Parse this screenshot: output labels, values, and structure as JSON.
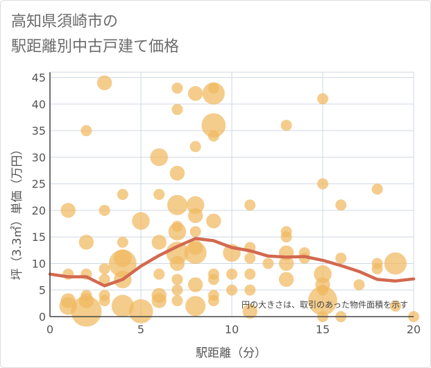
{
  "chart_data": {
    "type": "scatter",
    "title_lines": [
      "高知県須崎市の",
      "駅距離別中古戸建て価格"
    ],
    "xlabel": "駅距離（分）",
    "ylabel": "坪（3.3㎡）単価（万円）",
    "note": "円の大きさは、取引のあった物件面積を示す",
    "xlim": [
      0,
      20
    ],
    "ylim": [
      0,
      46
    ],
    "xticks": [
      0,
      5,
      10,
      15,
      20
    ],
    "yticks": [
      0,
      5,
      10,
      15,
      20,
      25,
      30,
      35,
      40,
      45
    ],
    "grid": true,
    "colors": {
      "bubble": "#f0b860",
      "line": "#d2694f"
    },
    "series": [
      {
        "type": "bubble",
        "points": [
          {
            "x": 1,
            "y": 20,
            "size": 2
          },
          {
            "x": 1,
            "y": 8,
            "size": 1
          },
          {
            "x": 1,
            "y": 3,
            "size": 2
          },
          {
            "x": 1,
            "y": 2,
            "size": 3
          },
          {
            "x": 2,
            "y": 35,
            "size": 1
          },
          {
            "x": 2,
            "y": 14,
            "size": 2
          },
          {
            "x": 2,
            "y": 8,
            "size": 1
          },
          {
            "x": 2,
            "y": 4,
            "size": 1
          },
          {
            "x": 2,
            "y": 3,
            "size": 2
          },
          {
            "x": 2,
            "y": 1,
            "size": 10
          },
          {
            "x": 3,
            "y": 44,
            "size": 2
          },
          {
            "x": 3,
            "y": 20,
            "size": 1
          },
          {
            "x": 3,
            "y": 9,
            "size": 1
          },
          {
            "x": 3,
            "y": 7,
            "size": 1
          },
          {
            "x": 3,
            "y": 4,
            "size": 1
          },
          {
            "x": 3,
            "y": 3,
            "size": 1
          },
          {
            "x": 4,
            "y": 23,
            "size": 1
          },
          {
            "x": 4,
            "y": 14,
            "size": 1
          },
          {
            "x": 4,
            "y": 11,
            "size": 3
          },
          {
            "x": 4,
            "y": 10,
            "size": 8
          },
          {
            "x": 4,
            "y": 7,
            "size": 3
          },
          {
            "x": 4,
            "y": 2,
            "size": 5
          },
          {
            "x": 5,
            "y": 18,
            "size": 3
          },
          {
            "x": 5,
            "y": 1,
            "size": 6
          },
          {
            "x": 6,
            "y": 30,
            "size": 3
          },
          {
            "x": 6,
            "y": 23,
            "size": 1
          },
          {
            "x": 6,
            "y": 14,
            "size": 2
          },
          {
            "x": 6,
            "y": 8,
            "size": 1
          },
          {
            "x": 6,
            "y": 4,
            "size": 2
          },
          {
            "x": 6,
            "y": 3,
            "size": 2
          },
          {
            "x": 7,
            "y": 43,
            "size": 1
          },
          {
            "x": 7,
            "y": 39,
            "size": 1
          },
          {
            "x": 7,
            "y": 27,
            "size": 2
          },
          {
            "x": 7,
            "y": 21,
            "size": 4
          },
          {
            "x": 7,
            "y": 17,
            "size": 1
          },
          {
            "x": 7,
            "y": 16,
            "size": 3
          },
          {
            "x": 7,
            "y": 12,
            "size": 5
          },
          {
            "x": 7,
            "y": 10,
            "size": 2
          },
          {
            "x": 7,
            "y": 7,
            "size": 1
          },
          {
            "x": 7,
            "y": 5,
            "size": 1
          },
          {
            "x": 7,
            "y": 3,
            "size": 1
          },
          {
            "x": 8,
            "y": 42,
            "size": 2
          },
          {
            "x": 8,
            "y": 32,
            "size": 1
          },
          {
            "x": 8,
            "y": 21,
            "size": 3
          },
          {
            "x": 8,
            "y": 19,
            "size": 2
          },
          {
            "x": 8,
            "y": 16,
            "size": 1
          },
          {
            "x": 8,
            "y": 13,
            "size": 2
          },
          {
            "x": 8,
            "y": 12,
            "size": 5
          },
          {
            "x": 8,
            "y": 6,
            "size": 2
          },
          {
            "x": 8,
            "y": 2,
            "size": 4
          },
          {
            "x": 9,
            "y": 43,
            "size": 1
          },
          {
            "x": 9,
            "y": 42,
            "size": 5
          },
          {
            "x": 9,
            "y": 36,
            "size": 6
          },
          {
            "x": 9,
            "y": 34,
            "size": 1
          },
          {
            "x": 9,
            "y": 18,
            "size": 2
          },
          {
            "x": 9,
            "y": 8,
            "size": 1
          },
          {
            "x": 9,
            "y": 7,
            "size": 1
          },
          {
            "x": 9,
            "y": 4,
            "size": 1
          },
          {
            "x": 9,
            "y": 3,
            "size": 1
          },
          {
            "x": 10,
            "y": 12,
            "size": 3
          },
          {
            "x": 10,
            "y": 8,
            "size": 1
          },
          {
            "x": 10,
            "y": 5,
            "size": 1
          },
          {
            "x": 11,
            "y": 21,
            "size": 1
          },
          {
            "x": 11,
            "y": 13,
            "size": 1
          },
          {
            "x": 11,
            "y": 11,
            "size": 1
          },
          {
            "x": 11,
            "y": 8,
            "size": 1
          },
          {
            "x": 11,
            "y": 5,
            "size": 1
          },
          {
            "x": 11,
            "y": 1,
            "size": 2
          },
          {
            "x": 12,
            "y": 10,
            "size": 1
          },
          {
            "x": 13,
            "y": 36,
            "size": 1
          },
          {
            "x": 13,
            "y": 16,
            "size": 1
          },
          {
            "x": 13,
            "y": 15,
            "size": 1
          },
          {
            "x": 13,
            "y": 12,
            "size": 2
          },
          {
            "x": 13,
            "y": 10,
            "size": 2
          },
          {
            "x": 13,
            "y": 7,
            "size": 2
          },
          {
            "x": 14,
            "y": 12,
            "size": 1
          },
          {
            "x": 14,
            "y": 11,
            "size": 1
          },
          {
            "x": 15,
            "y": 41,
            "size": 1
          },
          {
            "x": 15,
            "y": 25,
            "size": 1
          },
          {
            "x": 15,
            "y": 8,
            "size": 3
          },
          {
            "x": 15,
            "y": 6,
            "size": 2
          },
          {
            "x": 15,
            "y": 5,
            "size": 1
          },
          {
            "x": 15,
            "y": 3,
            "size": 9
          },
          {
            "x": 15,
            "y": 0,
            "size": 1
          },
          {
            "x": 16,
            "y": 21,
            "size": 1
          },
          {
            "x": 16,
            "y": 11,
            "size": 1
          },
          {
            "x": 16,
            "y": 0,
            "size": 1
          },
          {
            "x": 17,
            "y": 6,
            "size": 1
          },
          {
            "x": 18,
            "y": 24,
            "size": 1
          },
          {
            "x": 18,
            "y": 10,
            "size": 1
          },
          {
            "x": 18,
            "y": 9,
            "size": 1
          },
          {
            "x": 19,
            "y": 10,
            "size": 5
          },
          {
            "x": 19,
            "y": 2,
            "size": 1
          },
          {
            "x": 20,
            "y": 0,
            "size": 1
          }
        ]
      },
      {
        "type": "line",
        "x": [
          0,
          1,
          2,
          3,
          4,
          5,
          6,
          7,
          8,
          9,
          10,
          11,
          12,
          13,
          14,
          15,
          16,
          17,
          18,
          19,
          20
        ],
        "y": [
          8.0,
          7.5,
          7.5,
          5.8,
          7.0,
          9.5,
          11.5,
          13.2,
          14.7,
          14.3,
          13.0,
          12.4,
          11.4,
          11.2,
          11.3,
          10.6,
          9.6,
          8.5,
          7.0,
          6.7,
          7.1
        ]
      }
    ]
  }
}
